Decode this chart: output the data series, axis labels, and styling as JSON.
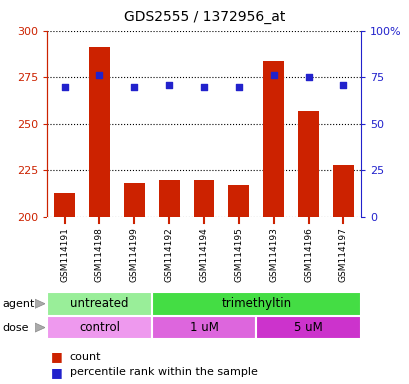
{
  "title": "GDS2555 / 1372956_at",
  "samples": [
    "GSM114191",
    "GSM114198",
    "GSM114199",
    "GSM114192",
    "GSM114194",
    "GSM114195",
    "GSM114193",
    "GSM114196",
    "GSM114197"
  ],
  "counts": [
    213,
    291,
    218,
    220,
    220,
    217,
    284,
    257,
    228
  ],
  "percentile_ranks": [
    70,
    76,
    70,
    71,
    70,
    70,
    76,
    75,
    71
  ],
  "ymin": 200,
  "ymax": 300,
  "yticks": [
    200,
    225,
    250,
    275,
    300
  ],
  "y2min": 0,
  "y2max": 100,
  "y2ticks": [
    0,
    25,
    50,
    75,
    100
  ],
  "bar_color": "#cc2200",
  "dot_color": "#2222cc",
  "bar_base": 200,
  "agent_groups": [
    {
      "label": "untreated",
      "start": 0,
      "end": 3,
      "color": "#99ee99"
    },
    {
      "label": "trimethyltin",
      "start": 3,
      "end": 9,
      "color": "#44dd44"
    }
  ],
  "dose_groups": [
    {
      "label": "control",
      "start": 0,
      "end": 3,
      "color": "#ee99ee"
    },
    {
      "label": "1 uM",
      "start": 3,
      "end": 6,
      "color": "#dd66dd"
    },
    {
      "label": "5 uM",
      "start": 6,
      "end": 9,
      "color": "#cc33cc"
    }
  ],
  "bg_color": "#ffffff",
  "plot_bg": "#ffffff",
  "left_axis_color": "#cc2200",
  "right_axis_color": "#2222cc",
  "xtick_bg": "#cccccc"
}
